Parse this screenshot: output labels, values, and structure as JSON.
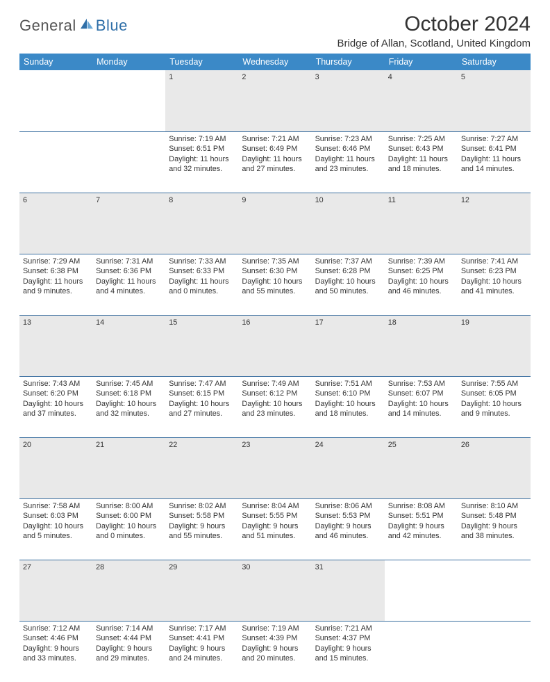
{
  "logo": {
    "general": "General",
    "blue": "Blue"
  },
  "title": "October 2024",
  "location": "Bridge of Allan, Scotland, United Kingdom",
  "colors": {
    "header_bg": "#3b89c7",
    "header_text": "#ffffff",
    "border": "#3b6fa0",
    "daynum_bg": "#e9e9e9",
    "logo_blue": "#2f6fa8"
  },
  "weekdays": [
    "Sunday",
    "Monday",
    "Tuesday",
    "Wednesday",
    "Thursday",
    "Friday",
    "Saturday"
  ],
  "weeks": [
    [
      null,
      null,
      {
        "n": "1",
        "sr": "Sunrise: 7:19 AM",
        "ss": "Sunset: 6:51 PM",
        "dl": "Daylight: 11 hours and 32 minutes."
      },
      {
        "n": "2",
        "sr": "Sunrise: 7:21 AM",
        "ss": "Sunset: 6:49 PM",
        "dl": "Daylight: 11 hours and 27 minutes."
      },
      {
        "n": "3",
        "sr": "Sunrise: 7:23 AM",
        "ss": "Sunset: 6:46 PM",
        "dl": "Daylight: 11 hours and 23 minutes."
      },
      {
        "n": "4",
        "sr": "Sunrise: 7:25 AM",
        "ss": "Sunset: 6:43 PM",
        "dl": "Daylight: 11 hours and 18 minutes."
      },
      {
        "n": "5",
        "sr": "Sunrise: 7:27 AM",
        "ss": "Sunset: 6:41 PM",
        "dl": "Daylight: 11 hours and 14 minutes."
      }
    ],
    [
      {
        "n": "6",
        "sr": "Sunrise: 7:29 AM",
        "ss": "Sunset: 6:38 PM",
        "dl": "Daylight: 11 hours and 9 minutes."
      },
      {
        "n": "7",
        "sr": "Sunrise: 7:31 AM",
        "ss": "Sunset: 6:36 PM",
        "dl": "Daylight: 11 hours and 4 minutes."
      },
      {
        "n": "8",
        "sr": "Sunrise: 7:33 AM",
        "ss": "Sunset: 6:33 PM",
        "dl": "Daylight: 11 hours and 0 minutes."
      },
      {
        "n": "9",
        "sr": "Sunrise: 7:35 AM",
        "ss": "Sunset: 6:30 PM",
        "dl": "Daylight: 10 hours and 55 minutes."
      },
      {
        "n": "10",
        "sr": "Sunrise: 7:37 AM",
        "ss": "Sunset: 6:28 PM",
        "dl": "Daylight: 10 hours and 50 minutes."
      },
      {
        "n": "11",
        "sr": "Sunrise: 7:39 AM",
        "ss": "Sunset: 6:25 PM",
        "dl": "Daylight: 10 hours and 46 minutes."
      },
      {
        "n": "12",
        "sr": "Sunrise: 7:41 AM",
        "ss": "Sunset: 6:23 PM",
        "dl": "Daylight: 10 hours and 41 minutes."
      }
    ],
    [
      {
        "n": "13",
        "sr": "Sunrise: 7:43 AM",
        "ss": "Sunset: 6:20 PM",
        "dl": "Daylight: 10 hours and 37 minutes."
      },
      {
        "n": "14",
        "sr": "Sunrise: 7:45 AM",
        "ss": "Sunset: 6:18 PM",
        "dl": "Daylight: 10 hours and 32 minutes."
      },
      {
        "n": "15",
        "sr": "Sunrise: 7:47 AM",
        "ss": "Sunset: 6:15 PM",
        "dl": "Daylight: 10 hours and 27 minutes."
      },
      {
        "n": "16",
        "sr": "Sunrise: 7:49 AM",
        "ss": "Sunset: 6:12 PM",
        "dl": "Daylight: 10 hours and 23 minutes."
      },
      {
        "n": "17",
        "sr": "Sunrise: 7:51 AM",
        "ss": "Sunset: 6:10 PM",
        "dl": "Daylight: 10 hours and 18 minutes."
      },
      {
        "n": "18",
        "sr": "Sunrise: 7:53 AM",
        "ss": "Sunset: 6:07 PM",
        "dl": "Daylight: 10 hours and 14 minutes."
      },
      {
        "n": "19",
        "sr": "Sunrise: 7:55 AM",
        "ss": "Sunset: 6:05 PM",
        "dl": "Daylight: 10 hours and 9 minutes."
      }
    ],
    [
      {
        "n": "20",
        "sr": "Sunrise: 7:58 AM",
        "ss": "Sunset: 6:03 PM",
        "dl": "Daylight: 10 hours and 5 minutes."
      },
      {
        "n": "21",
        "sr": "Sunrise: 8:00 AM",
        "ss": "Sunset: 6:00 PM",
        "dl": "Daylight: 10 hours and 0 minutes."
      },
      {
        "n": "22",
        "sr": "Sunrise: 8:02 AM",
        "ss": "Sunset: 5:58 PM",
        "dl": "Daylight: 9 hours and 55 minutes."
      },
      {
        "n": "23",
        "sr": "Sunrise: 8:04 AM",
        "ss": "Sunset: 5:55 PM",
        "dl": "Daylight: 9 hours and 51 minutes."
      },
      {
        "n": "24",
        "sr": "Sunrise: 8:06 AM",
        "ss": "Sunset: 5:53 PM",
        "dl": "Daylight: 9 hours and 46 minutes."
      },
      {
        "n": "25",
        "sr": "Sunrise: 8:08 AM",
        "ss": "Sunset: 5:51 PM",
        "dl": "Daylight: 9 hours and 42 minutes."
      },
      {
        "n": "26",
        "sr": "Sunrise: 8:10 AM",
        "ss": "Sunset: 5:48 PM",
        "dl": "Daylight: 9 hours and 38 minutes."
      }
    ],
    [
      {
        "n": "27",
        "sr": "Sunrise: 7:12 AM",
        "ss": "Sunset: 4:46 PM",
        "dl": "Daylight: 9 hours and 33 minutes."
      },
      {
        "n": "28",
        "sr": "Sunrise: 7:14 AM",
        "ss": "Sunset: 4:44 PM",
        "dl": "Daylight: 9 hours and 29 minutes."
      },
      {
        "n": "29",
        "sr": "Sunrise: 7:17 AM",
        "ss": "Sunset: 4:41 PM",
        "dl": "Daylight: 9 hours and 24 minutes."
      },
      {
        "n": "30",
        "sr": "Sunrise: 7:19 AM",
        "ss": "Sunset: 4:39 PM",
        "dl": "Daylight: 9 hours and 20 minutes."
      },
      {
        "n": "31",
        "sr": "Sunrise: 7:21 AM",
        "ss": "Sunset: 4:37 PM",
        "dl": "Daylight: 9 hours and 15 minutes."
      },
      null,
      null
    ]
  ]
}
